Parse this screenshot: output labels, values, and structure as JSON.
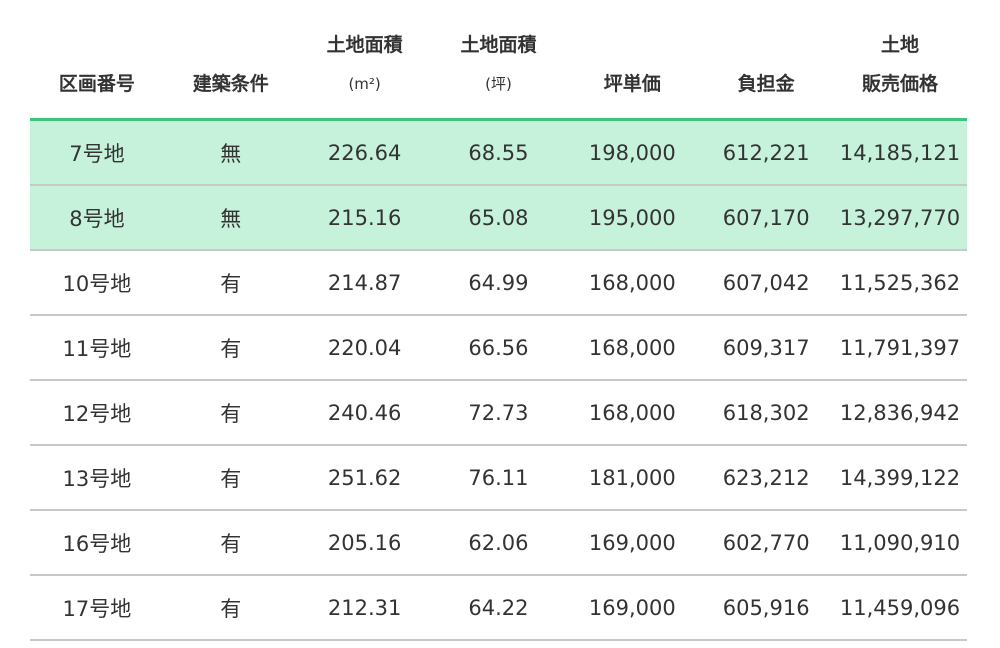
{
  "table": {
    "headers": [
      {
        "line1": "",
        "line2": "区画番号"
      },
      {
        "line1": "",
        "line2": "建築条件"
      },
      {
        "line1": "土地面積",
        "line2": "(m²)"
      },
      {
        "line1": "土地面積",
        "line2": "(坪)"
      },
      {
        "line1": "",
        "line2": "坪単価"
      },
      {
        "line1": "",
        "line2": "負担金"
      },
      {
        "line1": "土地",
        "line2": "販売価格"
      }
    ],
    "highlight_color": "#c6f2dc",
    "accent_color": "#3cc47c",
    "rows": [
      {
        "highlighted": true,
        "cells": [
          "7号地",
          "無",
          "226.64",
          "68.55",
          "198,000",
          "612,221",
          "14,185,121"
        ]
      },
      {
        "highlighted": true,
        "cells": [
          "8号地",
          "無",
          "215.16",
          "65.08",
          "195,000",
          "607,170",
          "13,297,770"
        ]
      },
      {
        "highlighted": false,
        "cells": [
          "10号地",
          "有",
          "214.87",
          "64.99",
          "168,000",
          "607,042",
          "11,525,362"
        ]
      },
      {
        "highlighted": false,
        "cells": [
          "11号地",
          "有",
          "220.04",
          "66.56",
          "168,000",
          "609,317",
          "11,791,397"
        ]
      },
      {
        "highlighted": false,
        "cells": [
          "12号地",
          "有",
          "240.46",
          "72.73",
          "168,000",
          "618,302",
          "12,836,942"
        ]
      },
      {
        "highlighted": false,
        "cells": [
          "13号地",
          "有",
          "251.62",
          "76.11",
          "181,000",
          "623,212",
          "14,399,122"
        ]
      },
      {
        "highlighted": false,
        "cells": [
          "16号地",
          "有",
          "205.16",
          "62.06",
          "169,000",
          "602,770",
          "11,090,910"
        ]
      },
      {
        "highlighted": false,
        "cells": [
          "17号地",
          "有",
          "212.31",
          "64.22",
          "169,000",
          "605,916",
          "11,459,096"
        ]
      }
    ]
  }
}
